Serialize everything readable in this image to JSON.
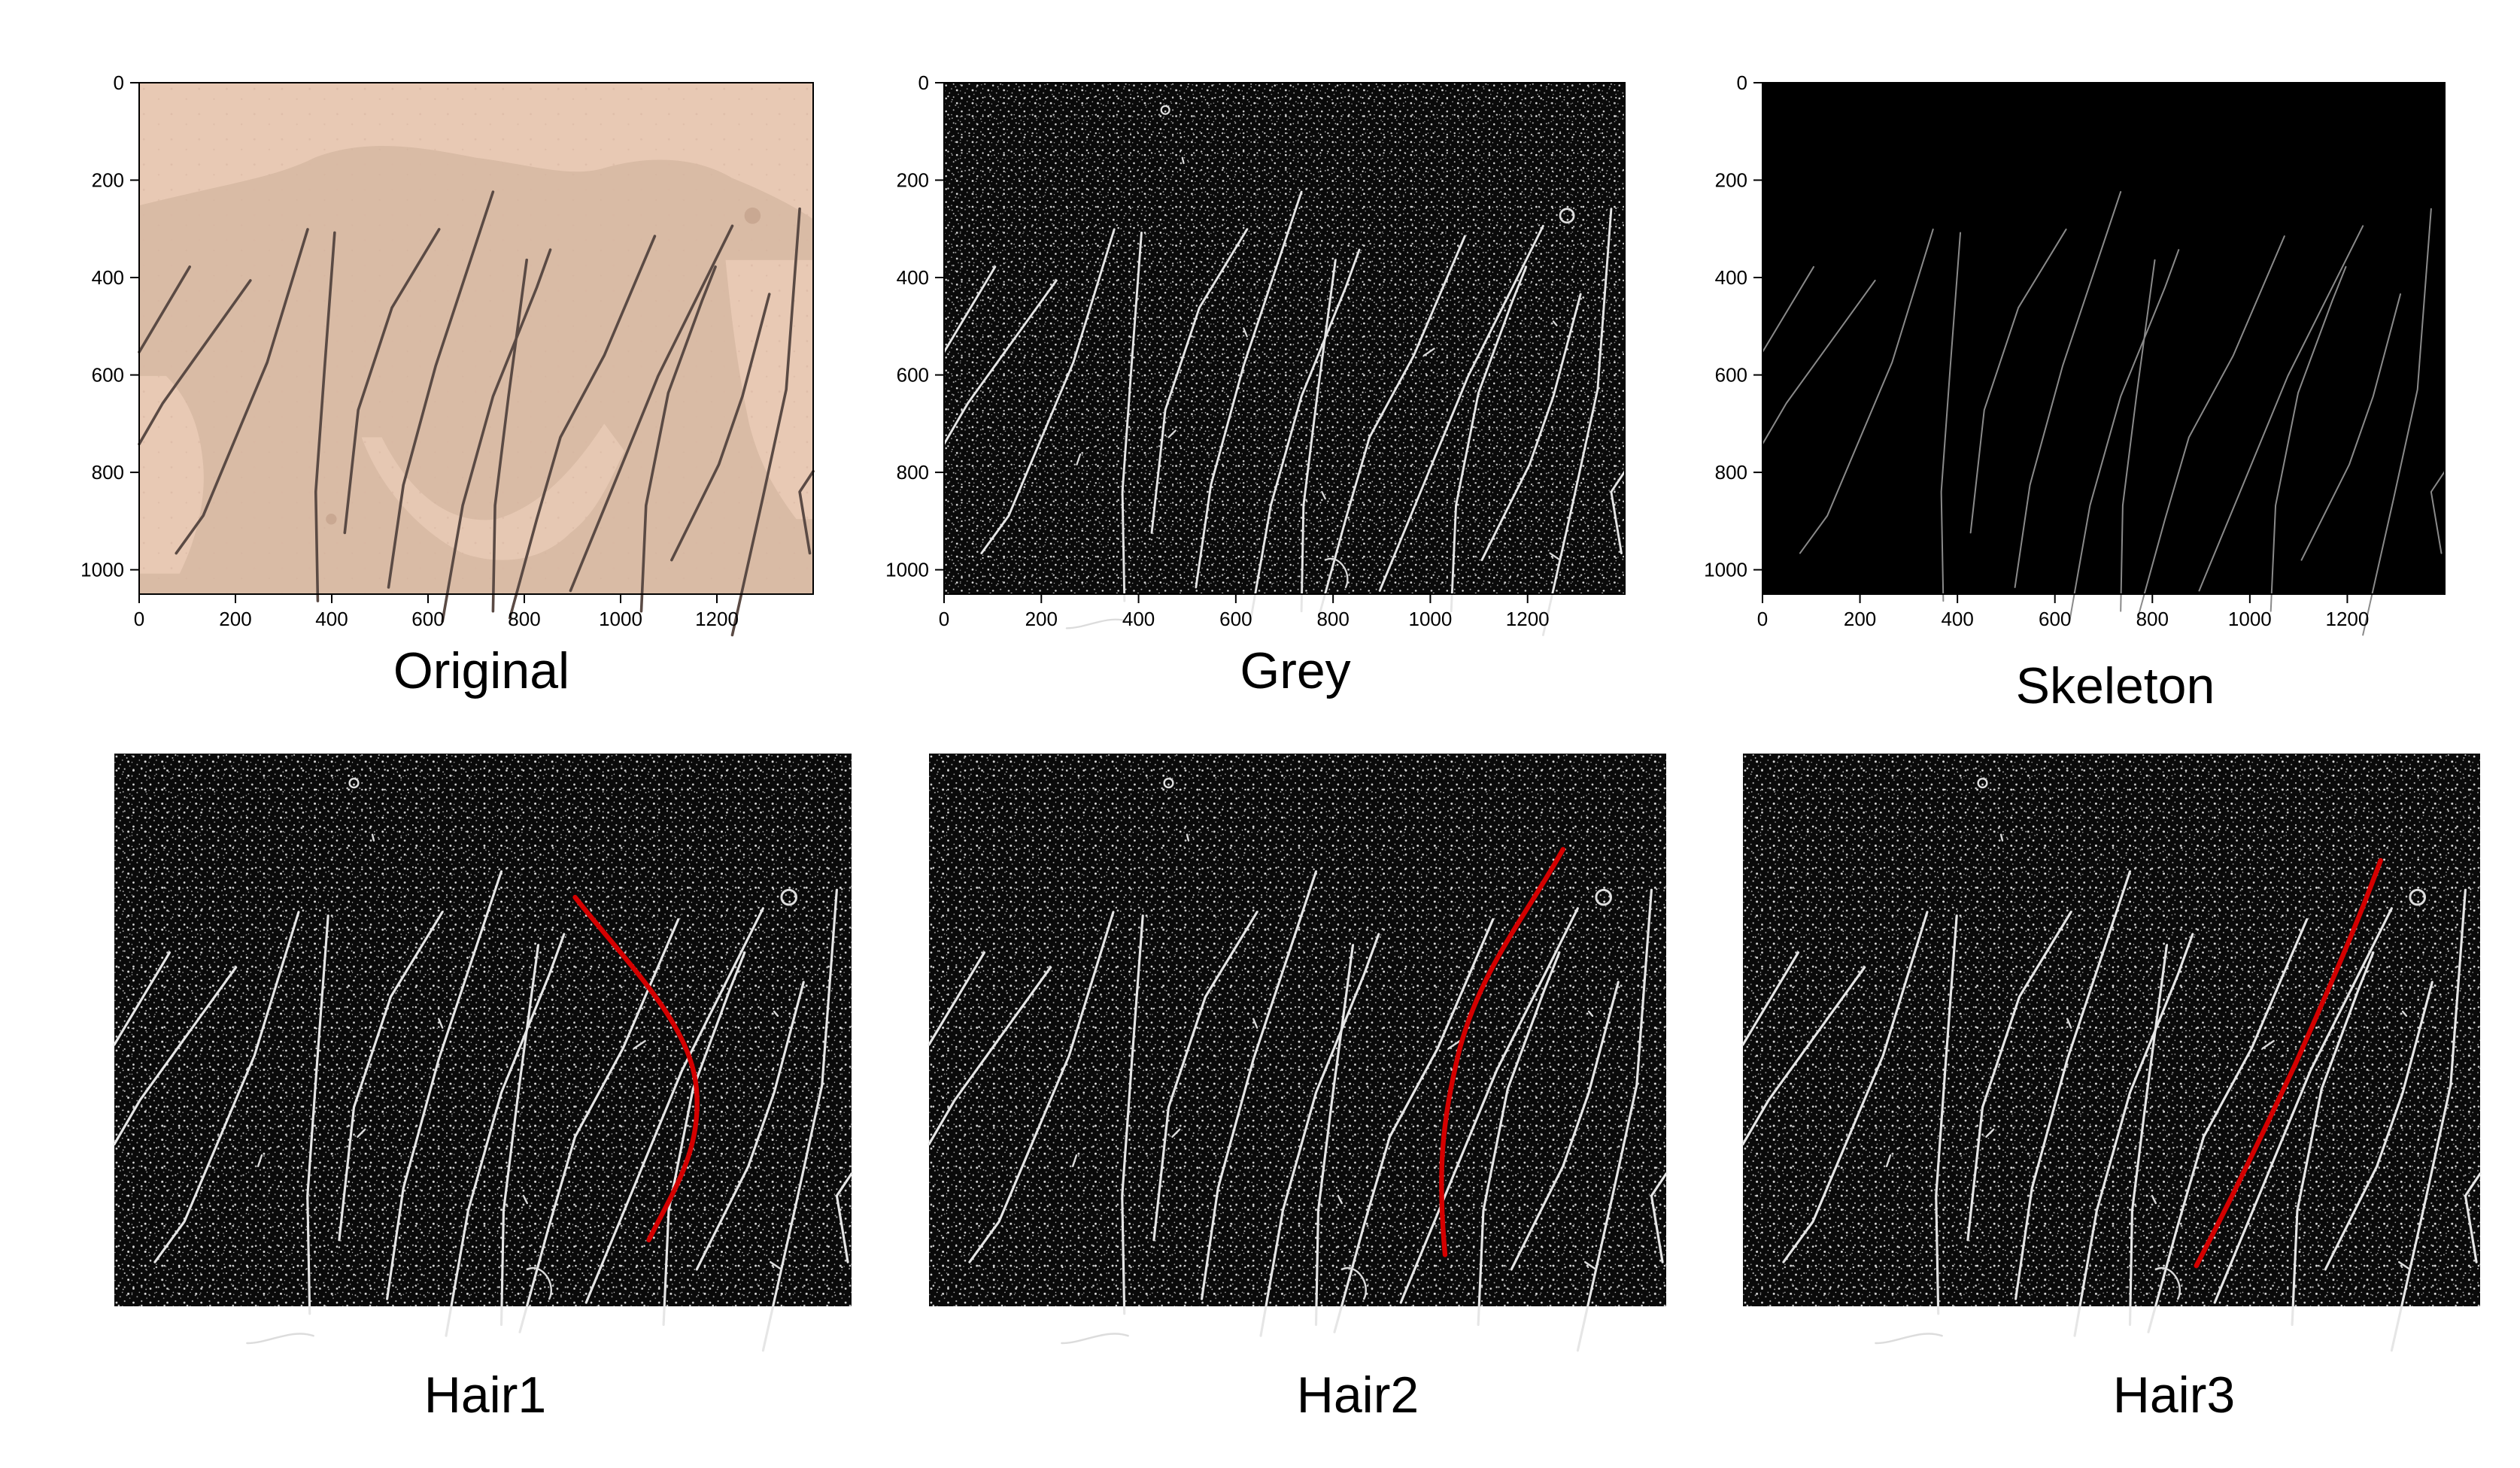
{
  "figure": {
    "panels": [
      {
        "title": "Original",
        "kind": "original",
        "has_axes": true,
        "x_ticks": [
          "0",
          "200",
          "400",
          "600",
          "800",
          "1000",
          "1200"
        ],
        "y_ticks": [
          "0",
          "200",
          "400",
          "600",
          "800",
          "1000"
        ],
        "background_color": "#e8c9b4",
        "hair_color": "#5a4a44"
      },
      {
        "title": "Grey",
        "kind": "grey",
        "has_axes": true,
        "x_ticks": [
          "0",
          "200",
          "400",
          "600",
          "800",
          "1000",
          "1200"
        ],
        "y_ticks": [
          "0",
          "200",
          "400",
          "600",
          "800",
          "1000"
        ],
        "background_color": "#0a0a0a",
        "hair_color": "#e6e6e6"
      },
      {
        "title": "Skeleton",
        "kind": "skeleton",
        "has_axes": true,
        "x_ticks": [
          "0",
          "200",
          "400",
          "600",
          "800",
          "1000",
          "1200"
        ],
        "y_ticks": [
          "0",
          "200",
          "400",
          "600",
          "800",
          "1000"
        ],
        "background_color": "#000000",
        "hair_color": "#8a8a8a"
      },
      {
        "title": "Hair1",
        "kind": "highlight",
        "has_axes": false,
        "background_color": "#0a0a0a",
        "hair_color": "#e6e6e6",
        "highlight_color": "#d40000",
        "highlight_hair": "hair1"
      },
      {
        "title": "Hair2",
        "kind": "highlight",
        "has_axes": false,
        "background_color": "#0a0a0a",
        "hair_color": "#e6e6e6",
        "highlight_color": "#d40000",
        "highlight_hair": "hair2"
      },
      {
        "title": "Hair3",
        "kind": "highlight",
        "has_axes": false,
        "background_color": "#0a0a0a",
        "hair_color": "#e6e6e6",
        "highlight_color": "#d40000",
        "highlight_hair": "hair3"
      }
    ]
  }
}
